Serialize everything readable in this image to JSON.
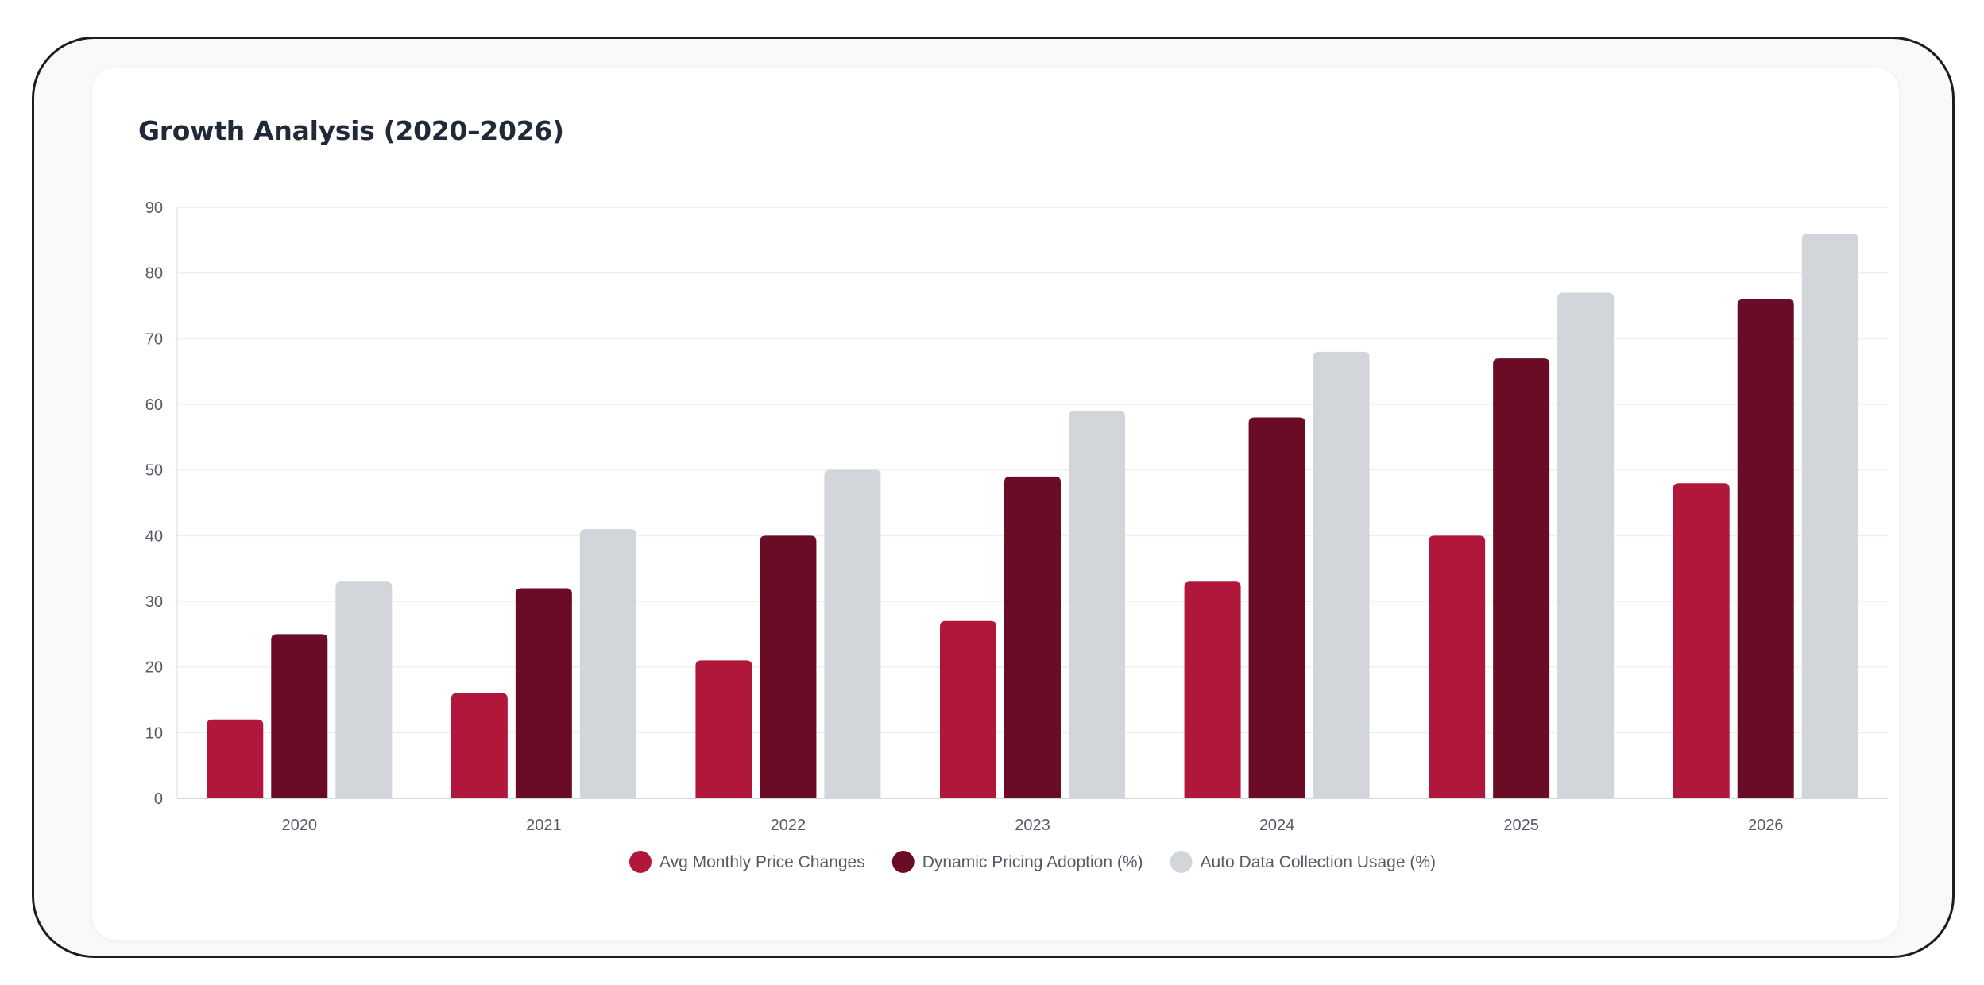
{
  "chart_data": {
    "type": "bar",
    "title": "Growth Analysis (2020–2026)",
    "xlabel": "",
    "ylabel": "",
    "ylim": [
      0,
      90
    ],
    "yticks": [
      0,
      10,
      20,
      30,
      40,
      50,
      60,
      70,
      80,
      90
    ],
    "categories": [
      "2020",
      "2021",
      "2022",
      "2023",
      "2024",
      "2025",
      "2026"
    ],
    "grid": true,
    "legend_position": "bottom-center",
    "series": [
      {
        "name": "Avg Monthly Price Changes",
        "color": "#b0173b",
        "values": [
          12,
          16,
          21,
          27,
          33,
          40,
          48
        ]
      },
      {
        "name": "Dynamic Pricing Adoption (%)",
        "color": "#6a0c25",
        "values": [
          25,
          32,
          40,
          49,
          58,
          67,
          76
        ]
      },
      {
        "name": "Auto Data Collection Usage (%)",
        "color": "#d2d5da",
        "values": [
          33,
          41,
          50,
          59,
          68,
          77,
          86
        ]
      }
    ]
  }
}
